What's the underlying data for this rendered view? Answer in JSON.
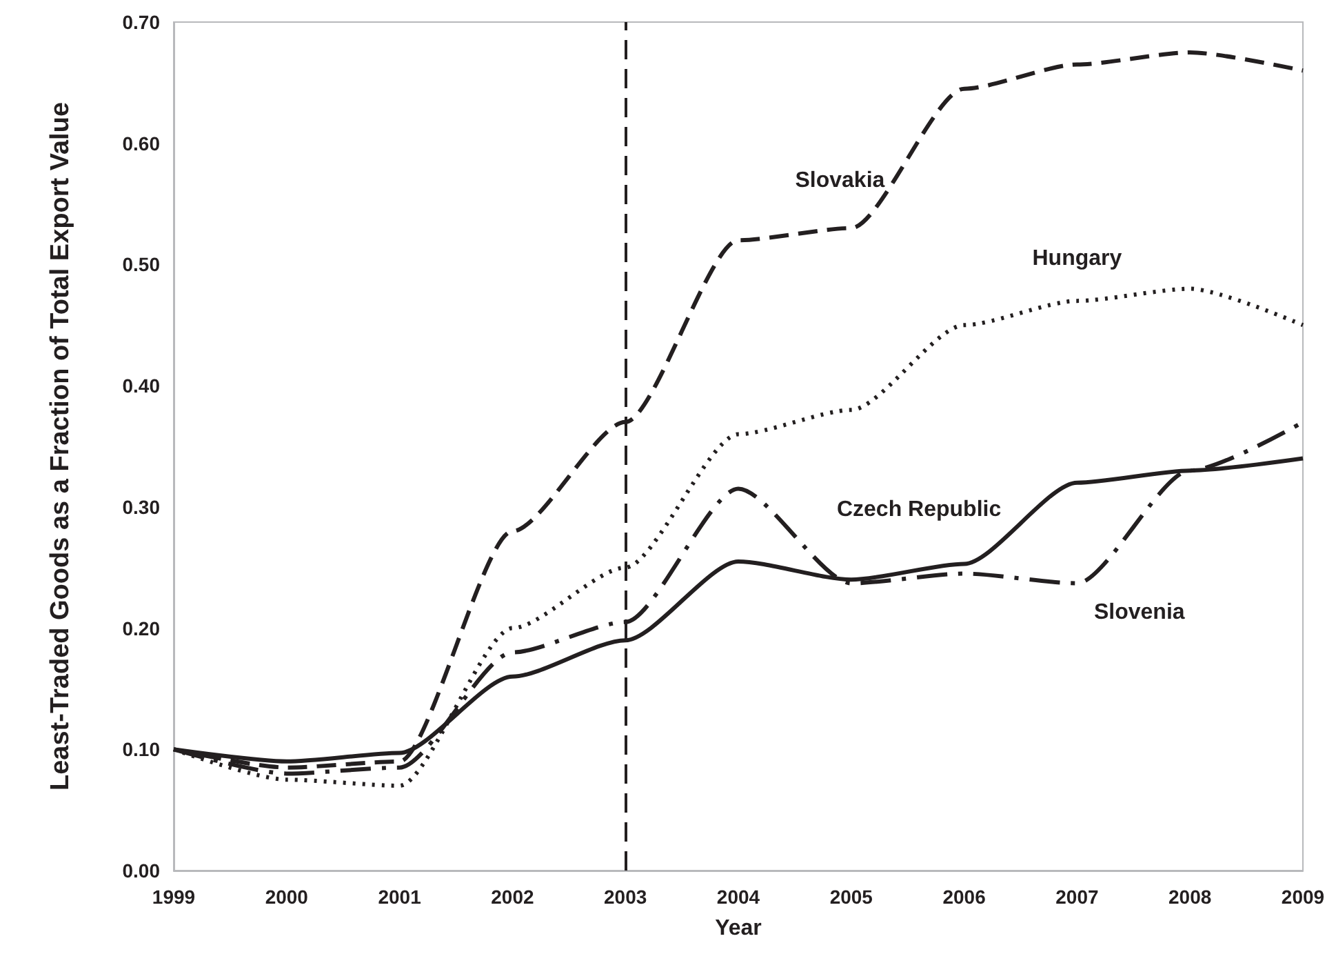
{
  "chart_data": {
    "type": "line",
    "xlabel": "Year",
    "ylabel": "Least-Traded Goods as a Fraction of Total Export Value",
    "x": [
      1999,
      2000,
      2001,
      2002,
      2003,
      2004,
      2005,
      2006,
      2007,
      2008,
      2009
    ],
    "series": [
      {
        "name": "Slovakia",
        "color": "#231f20",
        "line_style": "dashed",
        "values": [
          0.1,
          0.085,
          0.09,
          0.28,
          0.37,
          0.52,
          0.53,
          0.645,
          0.665,
          0.675,
          0.66
        ]
      },
      {
        "name": "Hungary",
        "color": "#231f20",
        "line_style": "dotted",
        "values": [
          0.1,
          0.075,
          0.07,
          0.2,
          0.25,
          0.36,
          0.38,
          0.45,
          0.47,
          0.48,
          0.45
        ]
      },
      {
        "name": "Czech Republic",
        "color": "#231f20",
        "line_style": "solid",
        "values": [
          0.1,
          0.09,
          0.097,
          0.16,
          0.19,
          0.255,
          0.24,
          0.253,
          0.32,
          0.33,
          0.34
        ]
      },
      {
        "name": "Slovenia",
        "color": "#231f20",
        "line_style": "dashdot",
        "values": [
          0.1,
          0.08,
          0.085,
          0.18,
          0.205,
          0.315,
          0.237,
          0.245,
          0.237,
          0.33,
          0.37
        ]
      }
    ],
    "xlim": [
      1999,
      2009
    ],
    "xticks": [
      1999,
      2000,
      2001,
      2002,
      2003,
      2004,
      2005,
      2006,
      2007,
      2008,
      2009
    ],
    "ylim": [
      0,
      0.7
    ],
    "yticks": [
      {
        "value": 0,
        "label": "0.00"
      },
      {
        "value": 0.1,
        "label": "0.10"
      },
      {
        "value": 0.2,
        "label": "0.20"
      },
      {
        "value": 0.3,
        "label": "0.30"
      },
      {
        "value": 0.4,
        "label": "0.40"
      },
      {
        "value": 0.5,
        "label": "0.50"
      },
      {
        "value": 0.6,
        "label": "0.60"
      },
      {
        "value": 0.7,
        "label": "0.70"
      }
    ],
    "ref_lines": [
      {
        "axis": "x",
        "value": 2003,
        "color": "#231f20",
        "line_style": "dashed"
      }
    ],
    "grid": false,
    "legend": false,
    "marker": "none"
  }
}
